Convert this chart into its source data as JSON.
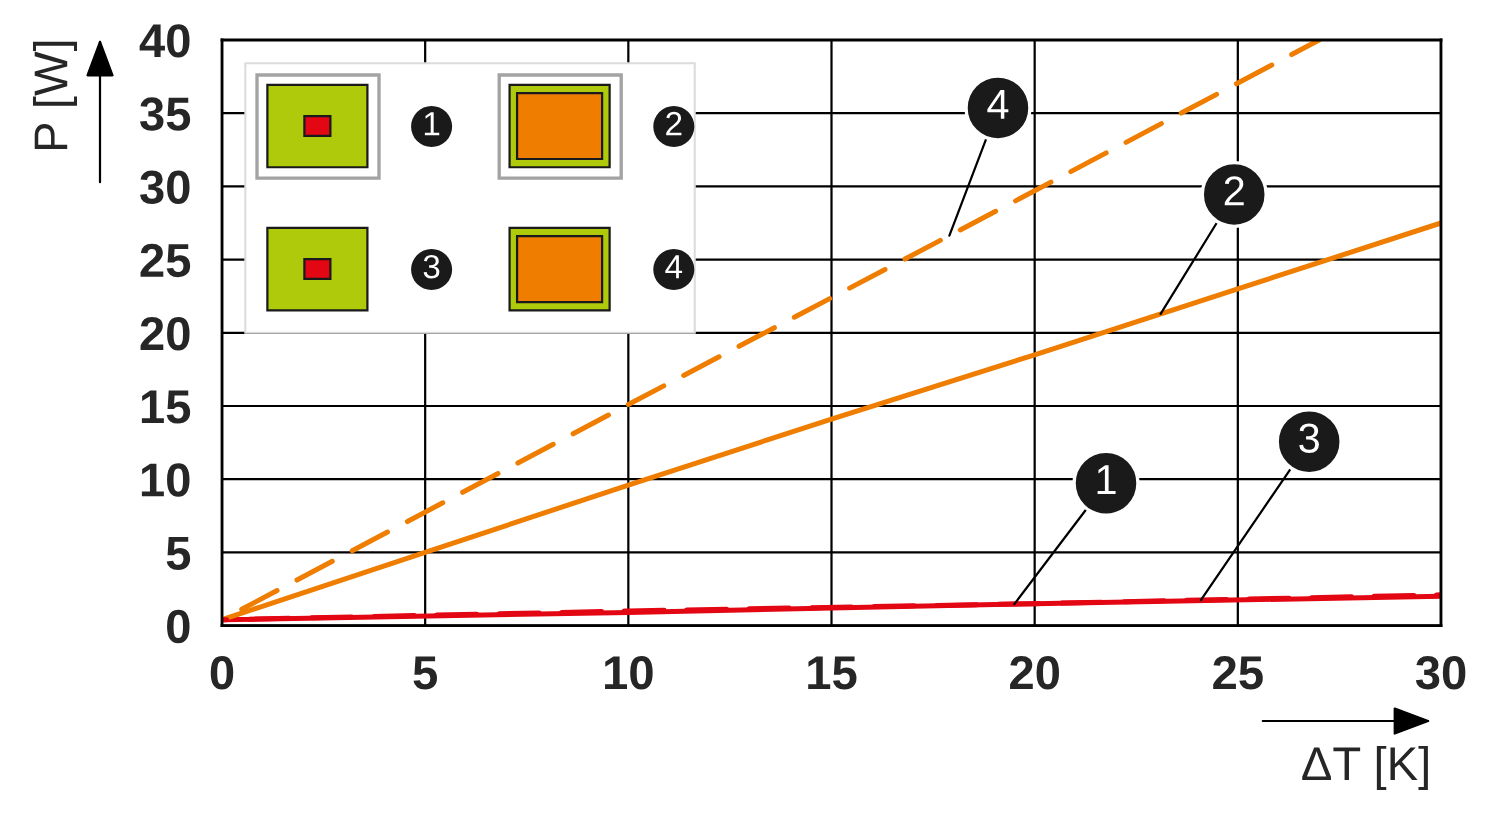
{
  "chart_data": {
    "type": "line",
    "xlabel": "ΔT [K]",
    "ylabel": "P [W]",
    "xlim": [
      0,
      30
    ],
    "ylim": [
      0,
      40
    ],
    "xticks": [
      0,
      5,
      10,
      15,
      20,
      25,
      30
    ],
    "yticks": [
      0,
      5,
      10,
      15,
      20,
      25,
      30,
      35,
      40
    ],
    "grid": true,
    "legend": "top left",
    "series": [
      {
        "name": "1",
        "color": "#e30613",
        "line_style": "solid",
        "x": [
          0,
          10,
          20,
          30
        ],
        "values": [
          0.4,
          0.9,
          1.5,
          2.0
        ]
      },
      {
        "name": "2",
        "color": "#ee7d00",
        "line_style": "solid",
        "x": [
          0,
          5,
          10,
          15,
          20,
          25,
          30
        ],
        "values": [
          0.4,
          5.0,
          9.6,
          14.1,
          18.5,
          23.0,
          27.5
        ]
      },
      {
        "name": "3",
        "color": "#e30613",
        "line_style": "dashed",
        "x": [
          0,
          10,
          20,
          30
        ],
        "values": [
          0.4,
          1.0,
          1.5,
          2.1
        ]
      },
      {
        "name": "4",
        "color": "#ee7d00",
        "line_style": "dashed",
        "x": [
          0,
          10,
          20,
          27
        ],
        "values": [
          0.4,
          15.1,
          29.7,
          40
        ]
      }
    ]
  }
}
